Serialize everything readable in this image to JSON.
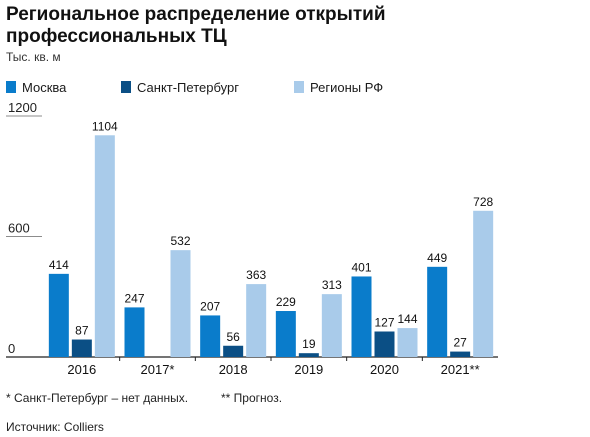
{
  "title": "Региональное распределение открытий профессиональных ТЦ",
  "unit": "Тыс. кв. м",
  "footnotes": {
    "spb": "* Санкт-Петербург – нет данных.",
    "forecast": "** Прогноз."
  },
  "source": "Источник: Colliers",
  "colors": {
    "moscow": "#0a7ccb",
    "spb": "#0b4f85",
    "regions": "#a9cbea",
    "axis": "#222222",
    "gridline": "#666666"
  },
  "chart_data": {
    "type": "bar",
    "categories": [
      "2016",
      "2017*",
      "2018",
      "2019",
      "2020",
      "2021**"
    ],
    "series": [
      {
        "name": "Москва",
        "values": [
          414,
          247,
          207,
          229,
          401,
          449
        ]
      },
      {
        "name": "Санкт-Петербург",
        "values": [
          87,
          null,
          56,
          19,
          127,
          27
        ]
      },
      {
        "name": "Регионы РФ",
        "values": [
          1104,
          532,
          363,
          313,
          144,
          728
        ]
      }
    ],
    "yticks": [
      "0",
      "600",
      "1200"
    ],
    "ylim": [
      0,
      1200
    ],
    "legend": "top-left",
    "grid": false
  }
}
